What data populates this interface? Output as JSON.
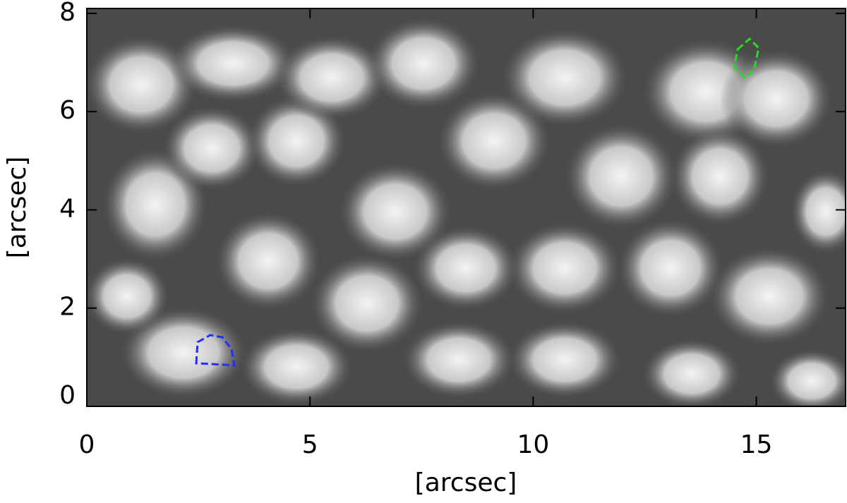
{
  "chart_data": {
    "type": "image",
    "xlabel": "[arcsec]",
    "ylabel": "[arcsec]",
    "xlim": [
      0,
      17
    ],
    "xticks": [
      0,
      5,
      10,
      15
    ],
    "ylim": [
      0,
      8.1
    ],
    "yticks": [
      0,
      2,
      4,
      6,
      8
    ]
  }
}
